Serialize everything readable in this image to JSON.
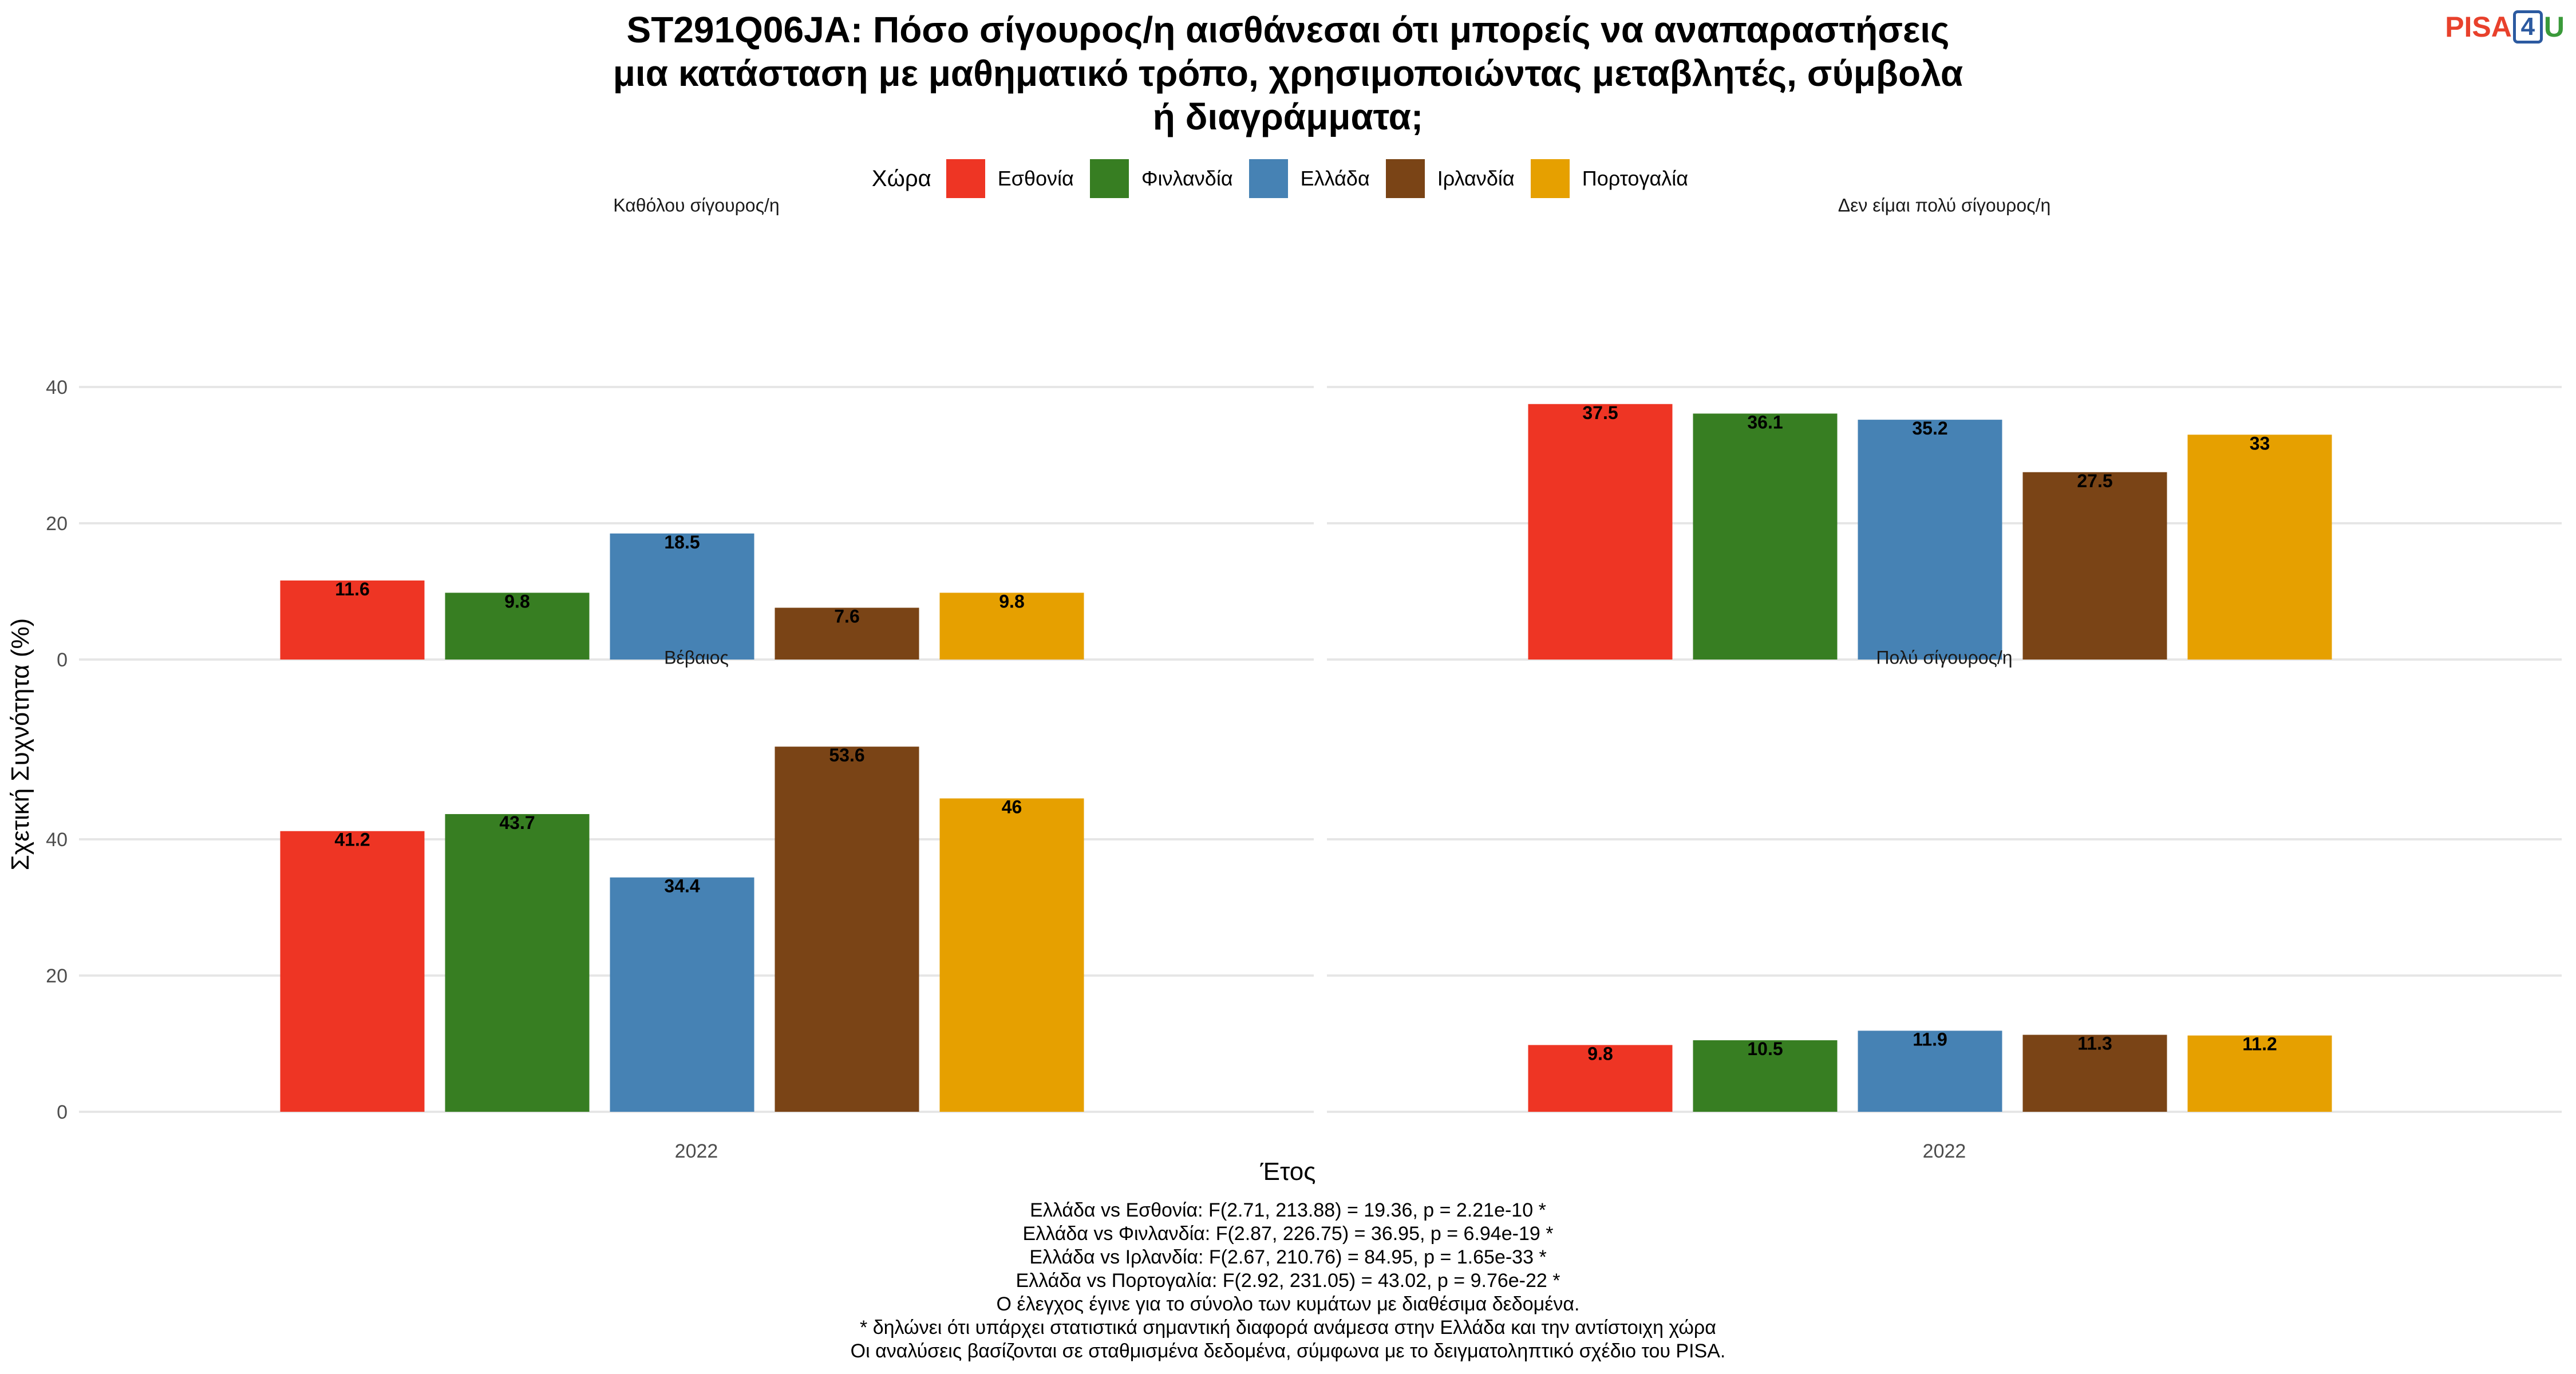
{
  "title_lines": [
    "ST291Q06JA: Πόσο σίγουρος/η αισθάνεσαι ότι μπορείς να αναπαραστήσεις",
    "μια κατάσταση με μαθηματικό τρόπο, χρησιμοποιώντας μεταβλητές, σύμβολα",
    "ή διαγράμματα;"
  ],
  "logo": {
    "pisa": "PISA",
    "num": "4",
    "u": "U"
  },
  "legend_title": "Χώρα",
  "colors": {
    "Εσθονία": "#ee3524",
    "Φινλανδία": "#377e22",
    "Ελλάδα": "#4682b4",
    "Ιρλανδία": "#7a4416",
    "Πορτογαλία": "#e6a000"
  },
  "chart_data": {
    "type": "bar",
    "xlabel": "Έτος",
    "ylabel": "Σχετική Συχνότητα (%)",
    "ylim": [
      0,
      55
    ],
    "yticks": [
      0,
      20,
      40
    ],
    "x_category": "2022",
    "series_names": [
      "Εσθονία",
      "Φινλανδία",
      "Ελλάδα",
      "Ιρλανδία",
      "Πορτογαλία"
    ],
    "panels": [
      {
        "title": "Καθόλου σίγουρος/η",
        "values": [
          11.6,
          9.8,
          18.5,
          7.6,
          9.8
        ]
      },
      {
        "title": "Δεν είμαι πολύ σίγουρος/η",
        "values": [
          37.5,
          36.1,
          35.2,
          27.5,
          33
        ]
      },
      {
        "title": "Βέβαιος",
        "values": [
          41.2,
          43.7,
          34.4,
          53.6,
          46
        ]
      },
      {
        "title": "Πολύ σίγουρος/η",
        "values": [
          9.8,
          10.5,
          11.9,
          11.3,
          11.2
        ]
      }
    ],
    "grid": true
  },
  "notes": [
    "Ελλάδα vs Εσθονία: F(2.71, 213.88) = 19.36, p = 2.21e-10 *",
    "Ελλάδα vs Φινλανδία: F(2.87, 226.75) = 36.95, p = 6.94e-19 *",
    "Ελλάδα vs Ιρλανδία: F(2.67, 210.76) = 84.95, p = 1.65e-33 *",
    "Ελλάδα vs Πορτογαλία: F(2.92, 231.05) = 43.02, p = 9.76e-22 *",
    "Ο έλεγχος έγινε για το σύνολο των κυμάτων με διαθέσιμα δεδομένα.",
    "* δηλώνει ότι υπάρχει στατιστικά σημαντική διαφορά ανάμεσα στην Ελλάδα και την αντίστοιχη χώρα",
    "Οι αναλύσεις βασίζονται σε σταθμισμένα δεδομένα, σύμφωνα με το δειγματοληπτικό σχέδιο του PISA."
  ]
}
